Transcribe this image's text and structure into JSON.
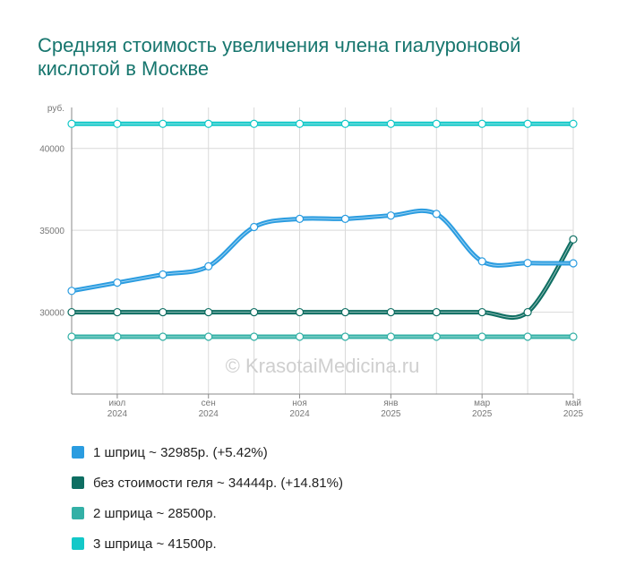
{
  "title": "Средняя стоимость увеличения члена гиалуроновой кислотой в Москве",
  "watermark": "© KrasotaiMedicina.ru",
  "legend": [
    {
      "label": "1 шприц ~ 32985р. (+5.42%)",
      "color": "#2a9ce0"
    },
    {
      "label": "без стоимости геля ~ 34444р. (+14.81%)",
      "color": "#0e6e62"
    },
    {
      "label": "2 шприца ~ 28500р.",
      "color": "#33b0a6"
    },
    {
      "label": "3 шприца ~ 41500р.",
      "color": "#13c8c8"
    }
  ],
  "chart_data": {
    "type": "line",
    "y_unit_label": "руб.",
    "ylim": [
      25000,
      42500
    ],
    "y_ticks": [
      30000,
      35000,
      40000
    ],
    "y_tick_labels": [
      "30000",
      "35000",
      "40000"
    ],
    "x": [
      "2024-06",
      "2024-07",
      "2024-08",
      "2024-09",
      "2024-10",
      "2024-11",
      "2024-12",
      "2025-01",
      "2025-02",
      "2025-03",
      "2025-04",
      "2025-05"
    ],
    "x_tick_labels": [
      {
        "index": 1,
        "month": "июл",
        "year": "2024"
      },
      {
        "index": 3,
        "month": "сен",
        "year": "2024"
      },
      {
        "index": 5,
        "month": "ноя",
        "year": "2024"
      },
      {
        "index": 7,
        "month": "янв",
        "year": "2025"
      },
      {
        "index": 9,
        "month": "мар",
        "year": "2025"
      },
      {
        "index": 11,
        "month": "май",
        "year": "2025"
      }
    ],
    "grid": true,
    "legend_position": "bottom",
    "series": [
      {
        "name": "1 шприц ~ 32985р. (+5.42%)",
        "color": "#2a9ce0",
        "values": [
          31300,
          31800,
          32300,
          32800,
          35200,
          35700,
          35700,
          35900,
          36000,
          33100,
          33000,
          32985
        ]
      },
      {
        "name": "без стоимости геля ~ 34444р. (+14.81%)",
        "color": "#0e6e62",
        "values": [
          30000,
          30000,
          30000,
          30000,
          30000,
          30000,
          30000,
          30000,
          30000,
          30000,
          30000,
          34444
        ]
      },
      {
        "name": "2 шприца ~ 28500р.",
        "color": "#33b0a6",
        "values": [
          28500,
          28500,
          28500,
          28500,
          28500,
          28500,
          28500,
          28500,
          28500,
          28500,
          28500,
          28500
        ]
      },
      {
        "name": "3 шприца ~ 41500р.",
        "color": "#13c8c8",
        "values": [
          41500,
          41500,
          41500,
          41500,
          41500,
          41500,
          41500,
          41500,
          41500,
          41500,
          41500,
          41500
        ]
      }
    ]
  }
}
